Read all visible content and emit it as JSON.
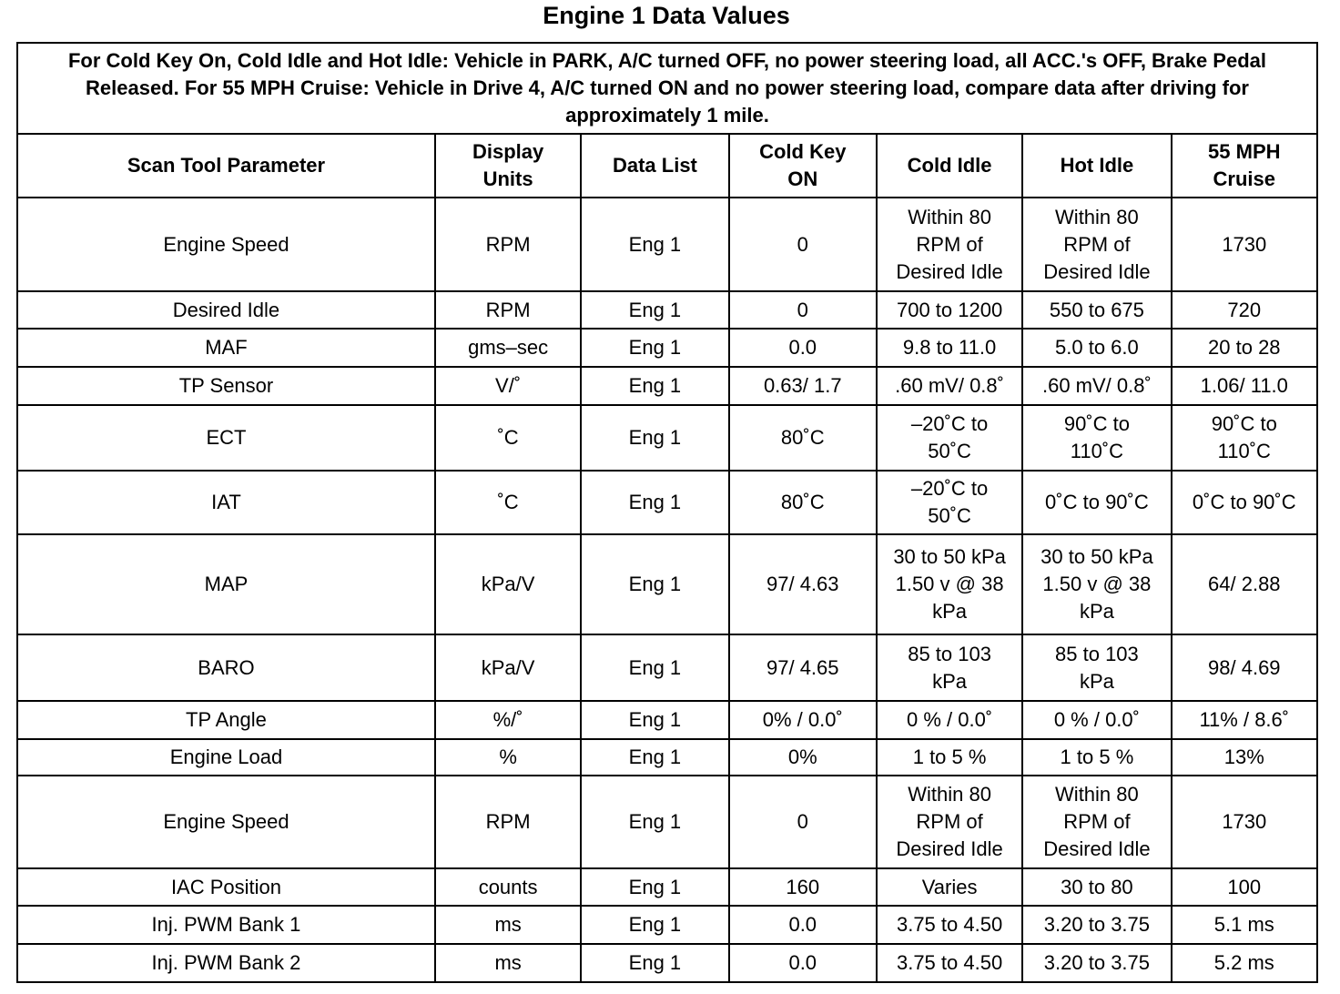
{
  "title": "Engine 1 Data Values",
  "note": "For Cold Key On, Cold Idle and Hot Idle: Vehicle in PARK, A/C turned OFF, no power steering load, all ACC.'s OFF, Brake Pedal Released. For 55 MPH Cruise: Vehicle in Drive 4, A/C turned ON and no power steering load, compare data after driving for approximately 1 mile.",
  "columns": [
    "Scan Tool Parameter",
    "Display\nUnits",
    "Data List",
    "Cold Key\nON",
    "Cold Idle",
    "Hot Idle",
    "55 MPH\nCruise"
  ],
  "rows": [
    [
      "Engine Speed",
      "RPM",
      "Eng 1",
      "0",
      "Within 80\nRPM of\nDesired Idle",
      "Within 80\nRPM of\nDesired Idle",
      "1730"
    ],
    [
      "Desired Idle",
      "RPM",
      "Eng 1",
      "0",
      "700 to 1200",
      "550 to 675",
      "720"
    ],
    [
      "MAF",
      "gms–sec",
      "Eng 1",
      "0.0",
      "9.8 to 11.0",
      "5.0 to 6.0",
      "20 to 28"
    ],
    [
      "TP Sensor",
      "V/˚",
      "Eng 1",
      "0.63/ 1.7",
      ".60 mV/ 0.8˚",
      ".60 mV/ 0.8˚",
      "1.06/ 11.0"
    ],
    [
      "ECT",
      "˚C",
      "Eng 1",
      "80˚C",
      "–20˚C to\n50˚C",
      "90˚C to\n110˚C",
      "90˚C to\n110˚C"
    ],
    [
      "IAT",
      "˚C",
      "Eng 1",
      "80˚C",
      "–20˚C to\n50˚C",
      "0˚C to 90˚C",
      "0˚C to 90˚C"
    ],
    [
      "MAP",
      "kPa/V",
      "Eng 1",
      "97/ 4.63",
      "30 to 50 kPa\n1.50 v @ 38\nkPa",
      "30 to 50 kPa\n1.50 v @ 38\nkPa",
      "64/ 2.88"
    ],
    [
      "BARO",
      "kPa/V",
      "Eng 1",
      "97/ 4.65",
      "85 to 103\nkPa",
      "85 to 103\nkPa",
      "98/ 4.69"
    ],
    [
      "TP Angle",
      "%/˚",
      "Eng 1",
      "0% / 0.0˚",
      "0 % / 0.0˚",
      "0 % / 0.0˚",
      "11% / 8.6˚"
    ],
    [
      "Engine Load",
      "%",
      "Eng 1",
      "0%",
      "1 to 5 %",
      "1 to 5 %",
      "13%"
    ],
    [
      "Engine Speed",
      "RPM",
      "Eng 1",
      "0",
      "Within 80\nRPM of\nDesired Idle",
      "Within 80\nRPM of\nDesired Idle",
      "1730"
    ],
    [
      "IAC Position",
      "counts",
      "Eng 1",
      "160",
      "Varies",
      "30 to 80",
      "100"
    ],
    [
      "Inj. PWM Bank 1",
      "ms",
      "Eng 1",
      "0.0",
      "3.75 to 4.50",
      "3.20 to 3.75",
      "5.1 ms"
    ],
    [
      "Inj. PWM Bank 2",
      "ms",
      "Eng 1",
      "0.0",
      "3.75 to 4.50",
      "3.20 to 3.75",
      "5.2 ms"
    ]
  ]
}
